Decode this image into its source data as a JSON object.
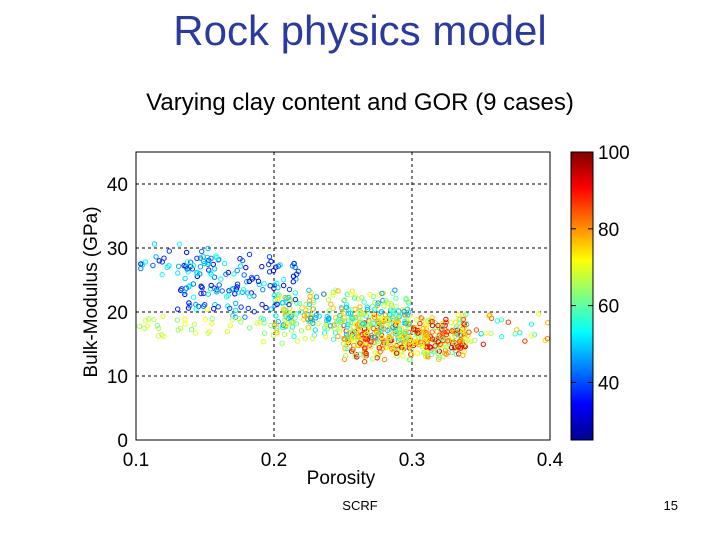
{
  "slide": {
    "title": "Rock physics model",
    "footer": "SCRF",
    "page_number": "15"
  },
  "chart_data": {
    "type": "scatter",
    "title": "Varying clay content and GOR (9 cases)",
    "xlabel": "Porosity",
    "ylabel": "Bulk-Modulus (GPa)",
    "xlim": [
      0.1,
      0.4
    ],
    "ylim": [
      0,
      45
    ],
    "xticks": [
      "0.1",
      "0.2",
      "0.3",
      "0.4"
    ],
    "yticks": [
      "0",
      "10",
      "20",
      "30",
      "40"
    ],
    "grid": true,
    "colorbar": {
      "range": [
        25,
        100
      ],
      "ticks": [
        "40",
        "60",
        "80",
        "100"
      ],
      "colormap": "jet"
    },
    "clusters": [
      {
        "x": [
          0.25,
          0.34
        ],
        "y": [
          12,
          20
        ],
        "c": [
          60,
          95
        ],
        "n": 420
      },
      {
        "x": [
          0.2,
          0.3
        ],
        "y": [
          14,
          24
        ],
        "c": [
          45,
          80
        ],
        "n": 300
      },
      {
        "x": [
          0.13,
          0.22
        ],
        "y": [
          18,
          30
        ],
        "c": [
          30,
          55
        ],
        "n": 140
      },
      {
        "x": [
          0.1,
          0.16
        ],
        "y": [
          25,
          31
        ],
        "c": [
          35,
          55
        ],
        "n": 35
      },
      {
        "x": [
          0.1,
          0.2
        ],
        "y": [
          15,
          21
        ],
        "c": [
          60,
          72
        ],
        "n": 40
      },
      {
        "x": [
          0.33,
          0.4
        ],
        "y": [
          14,
          21
        ],
        "c": [
          50,
          90
        ],
        "n": 35
      }
    ]
  }
}
